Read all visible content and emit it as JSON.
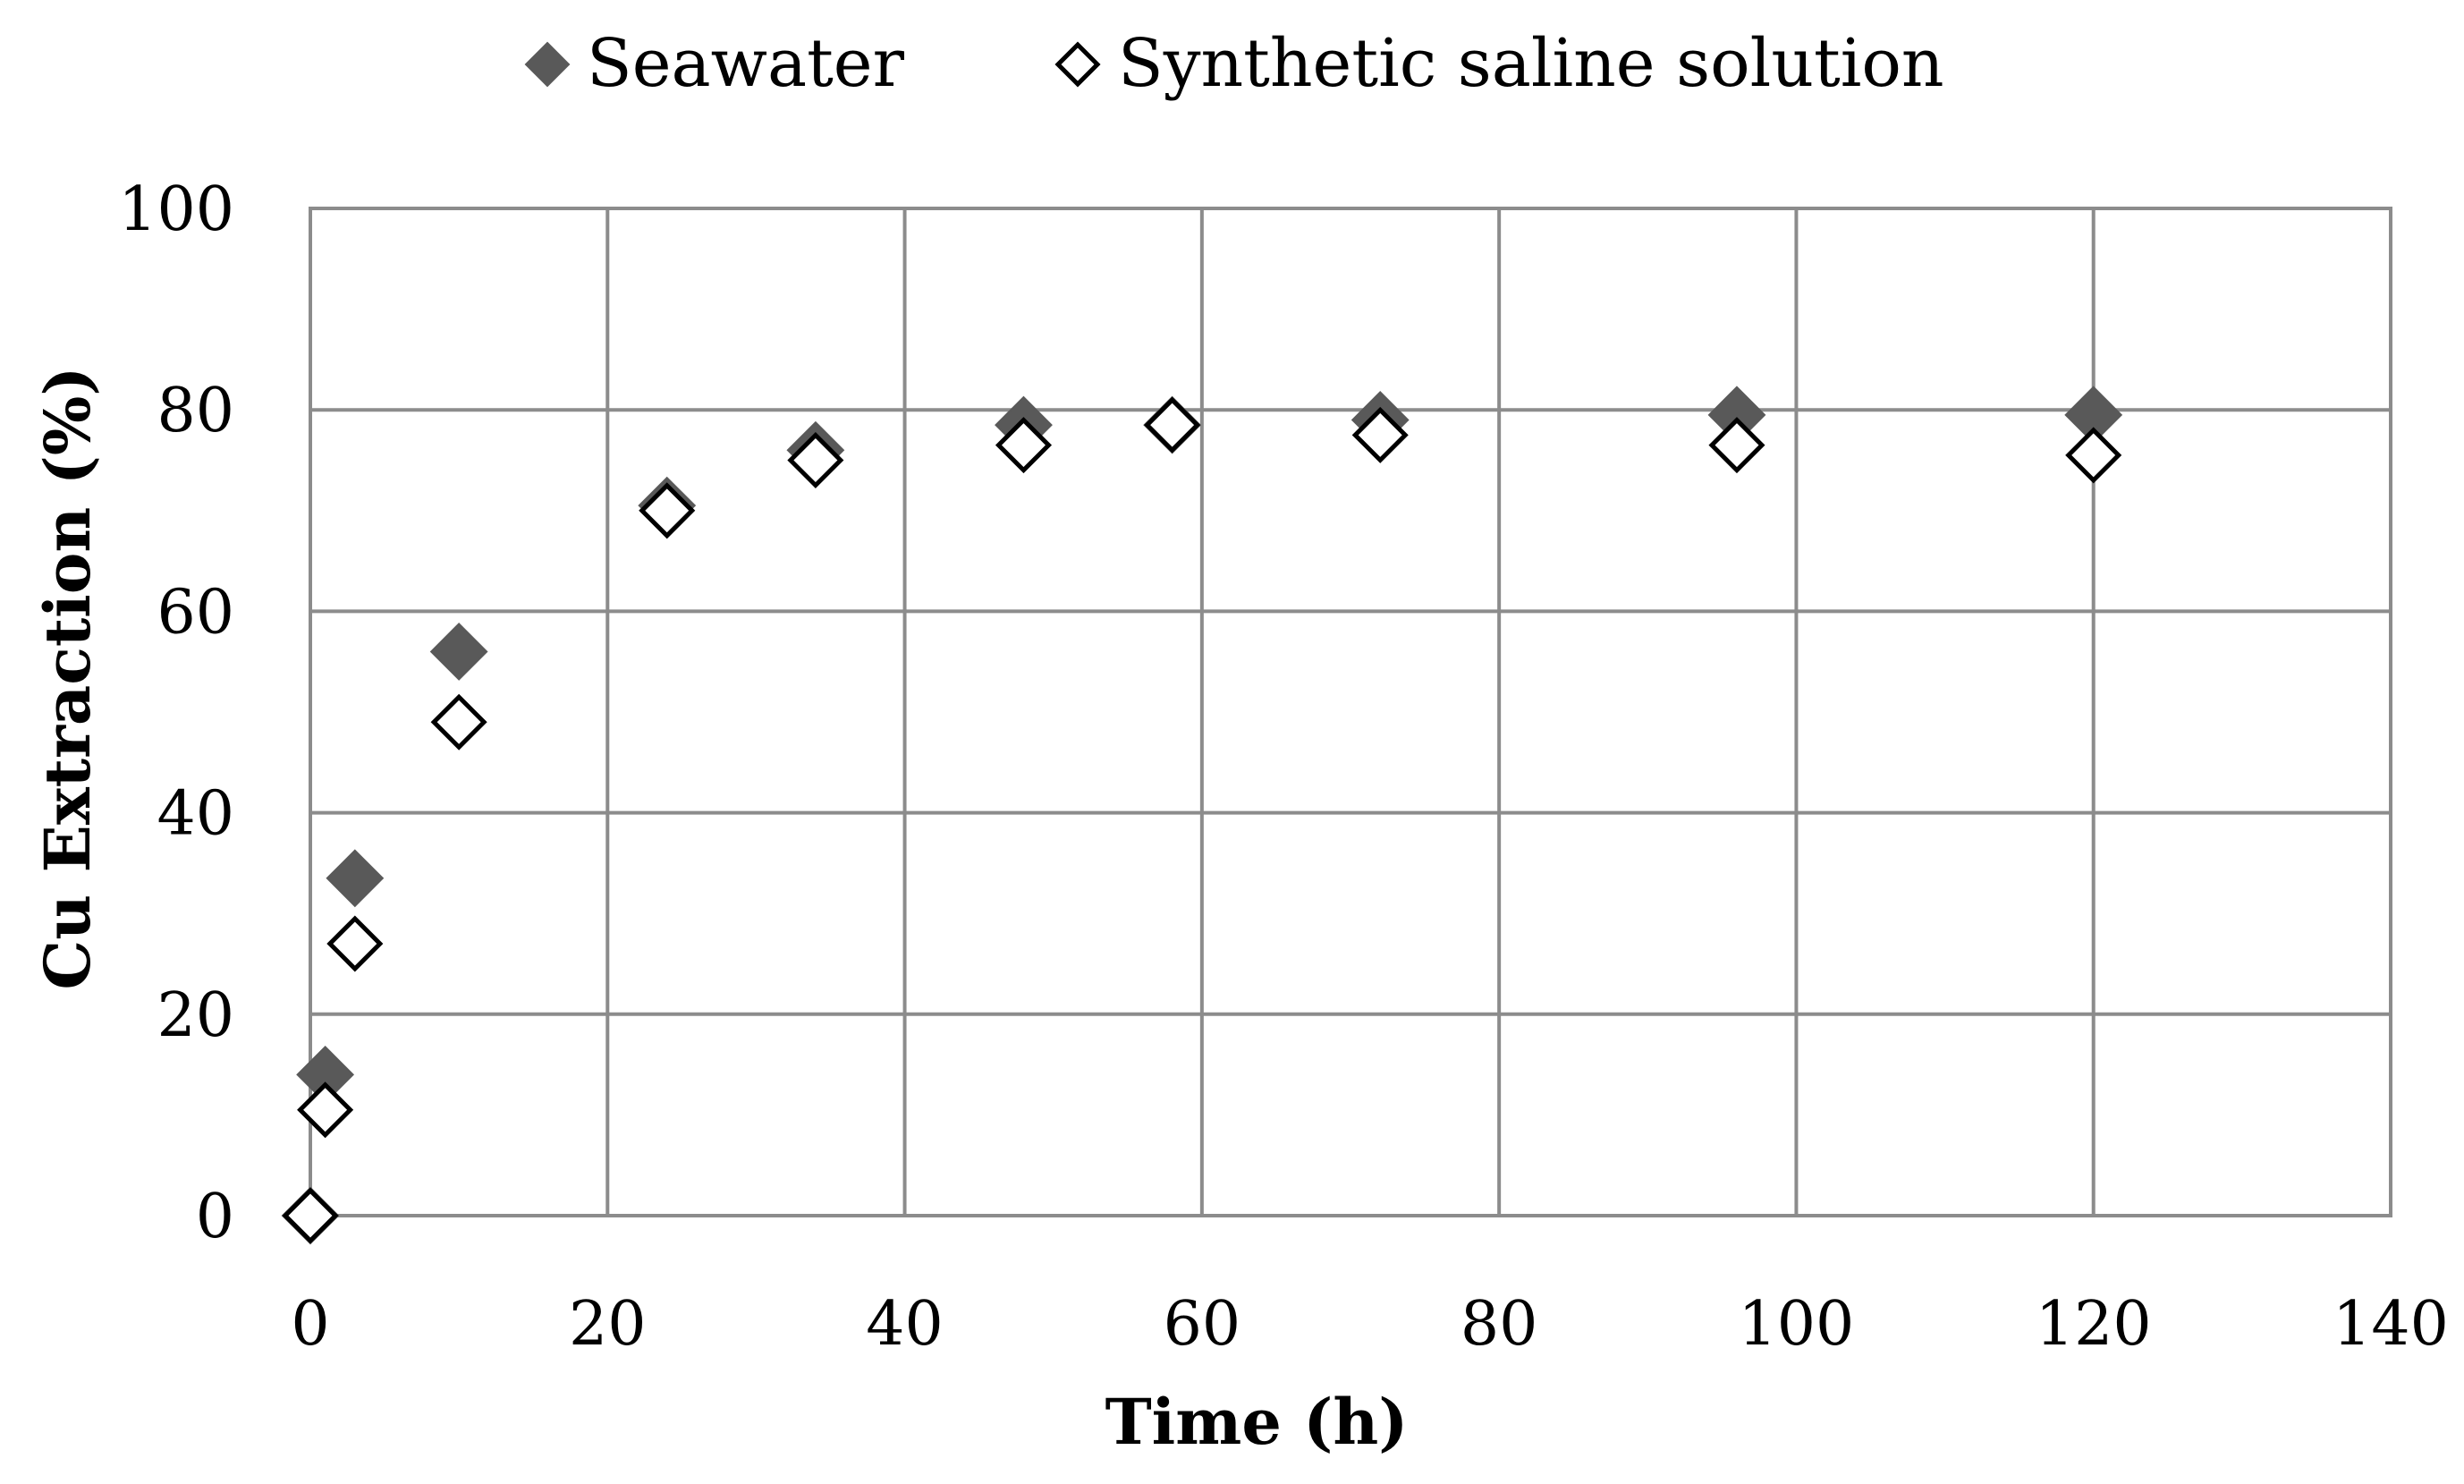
{
  "chart_data": {
    "type": "scatter",
    "title": "",
    "xlabel": "Time  (h)",
    "ylabel": "Cu Extraction (%)",
    "xlim": [
      0,
      140
    ],
    "ylim": [
      0,
      100
    ],
    "xticks": [
      0,
      20,
      40,
      60,
      80,
      100,
      120,
      140
    ],
    "yticks": [
      0,
      20,
      40,
      60,
      80,
      100
    ],
    "xtick_labels": [
      "0",
      "20",
      "40",
      "60",
      "80",
      "100",
      "120",
      "140"
    ],
    "ytick_labels": [
      "0",
      "20",
      "40",
      "60",
      "80",
      "100"
    ],
    "grid": true,
    "legend_position": "top-center",
    "series": [
      {
        "name": "Seawater",
        "marker": "filled-diamond",
        "color": "#595959",
        "x": [
          0,
          1,
          3,
          10,
          24,
          34,
          48,
          58,
          72,
          96,
          120
        ],
        "y": [
          0,
          14,
          33.5,
          56,
          70.5,
          76,
          78.5,
          78.5,
          79,
          79.5,
          79.5
        ]
      },
      {
        "name": "Synthetic saline solution",
        "marker": "open-diamond",
        "color": "#000000",
        "x": [
          0,
          1,
          3,
          10,
          24,
          34,
          48,
          58,
          72,
          96,
          120
        ],
        "y": [
          0,
          10.5,
          27,
          49,
          70,
          75,
          76.5,
          78.5,
          77.5,
          76.5,
          75.5
        ]
      }
    ]
  }
}
